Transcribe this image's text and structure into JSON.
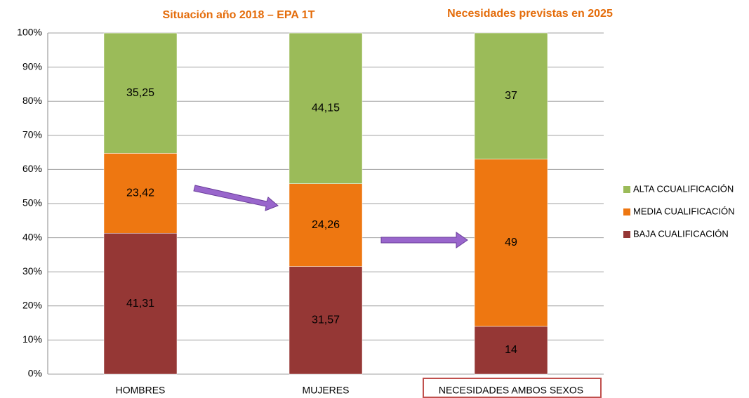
{
  "chart_data": {
    "type": "stacked_bar",
    "annotations": [
      "Situación año 2018 – EPA 1T",
      "Necesidades previstas en 2025"
    ],
    "categories": [
      "HOMBRES",
      "MUJERES",
      "NECESIDADES AMBOS SEXOS"
    ],
    "series": [
      {
        "name": "BAJA CUALIFICACIÓN",
        "color": "#953735",
        "values": [
          41.31,
          31.57,
          14
        ],
        "value_labels": [
          "41,31",
          "31,57",
          "14"
        ]
      },
      {
        "name": "MEDIA CUALIFICACIÓN",
        "color": "#ee7711",
        "values": [
          23.42,
          24.26,
          49
        ],
        "value_labels": [
          "23,42",
          "24,26",
          "49"
        ]
      },
      {
        "name": "ALTA CCUALIFICACIÓN",
        "color": "#9bbb59",
        "values": [
          35.25,
          44.15,
          37
        ],
        "value_labels": [
          "35,25",
          "44,15",
          "37"
        ]
      }
    ],
    "ylim": [
      0,
      100
    ],
    "yticks": [
      {
        "value": 0,
        "label": "0%"
      },
      {
        "value": 10,
        "label": "10%"
      },
      {
        "value": 20,
        "label": "20%"
      },
      {
        "value": 30,
        "label": "30%"
      },
      {
        "value": 40,
        "label": "40%"
      },
      {
        "value": 50,
        "label": "50%"
      },
      {
        "value": 60,
        "label": "60%"
      },
      {
        "value": 70,
        "label": "70%"
      },
      {
        "value": 80,
        "label": "80%"
      },
      {
        "value": 90,
        "label": "90%"
      },
      {
        "value": 100,
        "label": "100%"
      }
    ],
    "grid": true,
    "legend": "right"
  }
}
